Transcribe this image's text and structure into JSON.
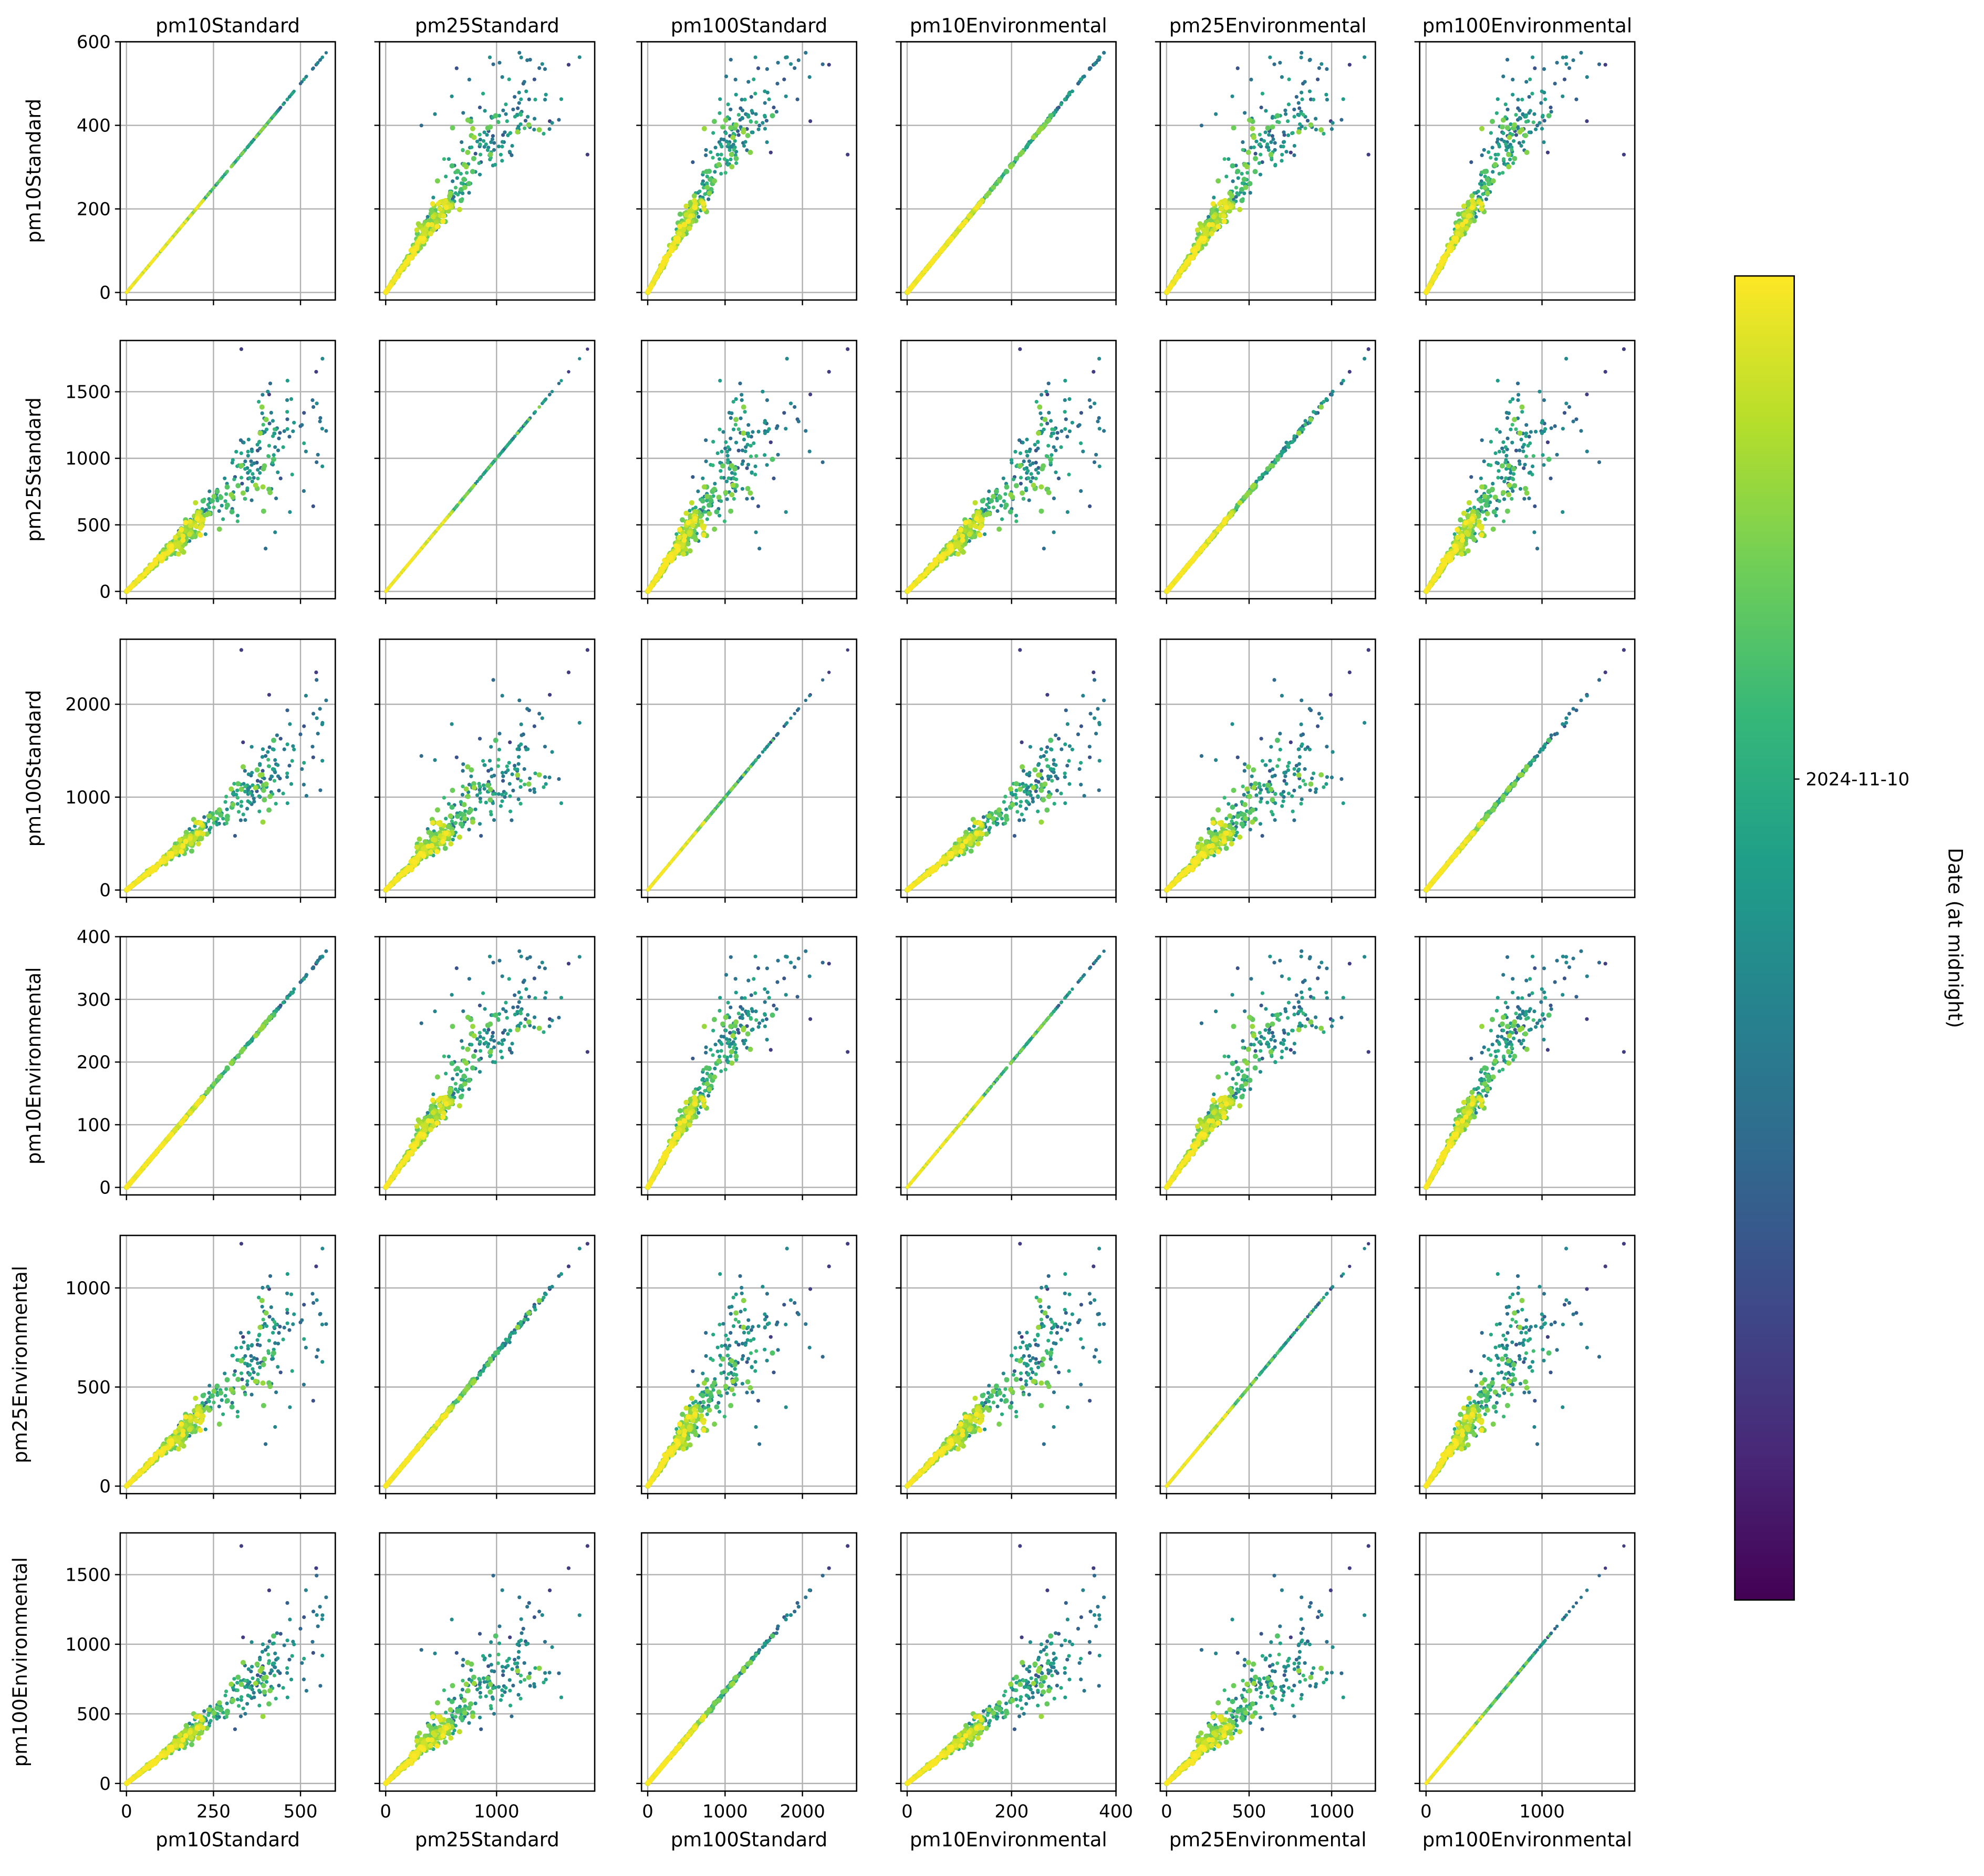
{
  "chart_data": {
    "type": "scatter",
    "title": "",
    "variables": [
      "pm10Standard",
      "pm25Standard",
      "pm100Standard",
      "pm10Environmental",
      "pm25Environmental",
      "pm100Environmental"
    ],
    "axis_ranges": {
      "pm10Standard": [
        -18,
        600
      ],
      "pm25Standard": [
        -55,
        1885
      ],
      "pm100Standard": [
        -80,
        2700
      ],
      "pm10Environmental": [
        -12,
        400
      ],
      "pm25Environmental": [
        -38,
        1265
      ],
      "pm100Environmental": [
        -55,
        1800
      ]
    },
    "ticks": {
      "pm10Standard": [
        0,
        200,
        400,
        600
      ],
      "pm25Standard": [
        0,
        500,
        1000,
        1500
      ],
      "pm100Standard": [
        0,
        1000,
        2000
      ],
      "pm10Environmental": [
        0,
        100,
        200,
        300,
        400
      ],
      "pm25Environmental": [
        0,
        500,
        1000
      ],
      "pm100Environmental": [
        0,
        500,
        1000,
        1500
      ]
    },
    "x_ticks_bottom": {
      "pm10Standard": [
        0,
        250,
        500
      ],
      "pm25Standard": [
        0,
        1000
      ],
      "pm100Standard": [
        0,
        1000,
        2000
      ],
      "pm10Environmental": [
        0,
        200,
        400
      ],
      "pm25Environmental": [
        0,
        500,
        1000
      ],
      "pm100Environmental": [
        0,
        1000
      ]
    },
    "ratios_to_pm10Standard": {
      "pm10Standard": 1.0,
      "pm25Standard": 2.55,
      "pm100Standard": 3.0,
      "pm10Environmental": 0.655,
      "pm25Environmental": 1.72,
      "pm100Environmental": 1.97
    },
    "max_pm10Standard": 575,
    "outliers_pm10Standard": [
      [
        330,
        1820
      ],
      [
        410,
        1480
      ],
      [
        335,
        1120
      ],
      [
        545,
        1650
      ]
    ],
    "grid": true,
    "colorbar": {
      "label": "Date (at midnight)",
      "tick_label": "2024-11-10",
      "tick_fraction": 0.62,
      "colormap": "viridis",
      "colors": [
        "#440154",
        "#482878",
        "#3e4989",
        "#31688e",
        "#26828e",
        "#1f9e89",
        "#35b779",
        "#6ece58",
        "#b5de2b",
        "#fde725"
      ]
    }
  }
}
